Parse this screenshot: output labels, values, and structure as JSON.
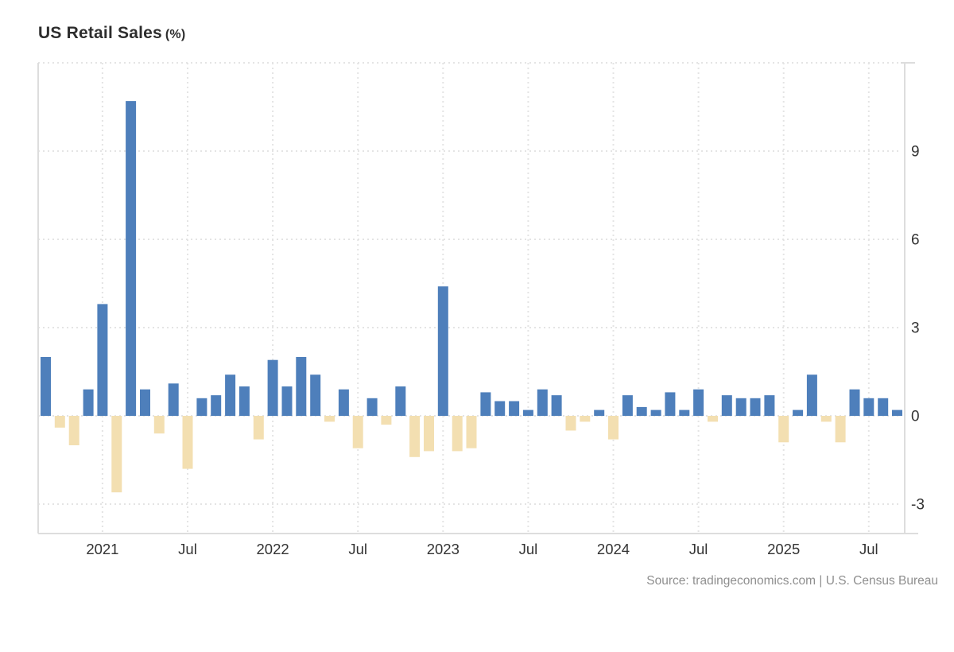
{
  "title": {
    "main": "US Retail Sales",
    "unit": "(%)"
  },
  "source": "Source: tradingeconomics.com | U.S. Census Bureau",
  "chart_data": {
    "type": "bar",
    "series_name": "US Retail Sales MoM (%)",
    "x": [
      "2020-09",
      "2020-10",
      "2020-11",
      "2020-12",
      "2021-01",
      "2021-02",
      "2021-03",
      "2021-04",
      "2021-05",
      "2021-06",
      "2021-07",
      "2021-08",
      "2021-09",
      "2021-10",
      "2021-11",
      "2021-12",
      "2022-01",
      "2022-02",
      "2022-03",
      "2022-04",
      "2022-05",
      "2022-06",
      "2022-07",
      "2022-08",
      "2022-09",
      "2022-10",
      "2022-11",
      "2022-12",
      "2023-01",
      "2023-02",
      "2023-03",
      "2023-04",
      "2023-05",
      "2023-06",
      "2023-07",
      "2023-08",
      "2023-09",
      "2023-10",
      "2023-11",
      "2023-12",
      "2024-01",
      "2024-02",
      "2024-03",
      "2024-04",
      "2024-05",
      "2024-06",
      "2024-07",
      "2024-08",
      "2024-09",
      "2024-10",
      "2024-11",
      "2024-12",
      "2025-01",
      "2025-02",
      "2025-03",
      "2025-04",
      "2025-05",
      "2025-06",
      "2025-07",
      "2025-08",
      "2025-09"
    ],
    "values": [
      2.0,
      -0.4,
      -1.0,
      0.9,
      3.8,
      -2.6,
      10.7,
      0.9,
      -0.6,
      1.1,
      -1.8,
      0.6,
      0.7,
      1.4,
      1.0,
      -0.8,
      1.9,
      1.0,
      2.0,
      1.4,
      -0.2,
      0.9,
      -1.1,
      0.6,
      -0.3,
      1.0,
      -1.4,
      -1.2,
      4.4,
      -1.2,
      -1.1,
      0.8,
      0.5,
      0.5,
      0.2,
      0.9,
      0.7,
      -0.5,
      -0.2,
      0.2,
      -0.8,
      0.7,
      0.3,
      0.2,
      0.8,
      0.2,
      0.9,
      -0.2,
      0.7,
      0.6,
      0.6,
      0.7,
      -0.9,
      0.2,
      1.4,
      -0.2,
      -0.9,
      0.9,
      0.6,
      0.6,
      0.2
    ],
    "xticks": [
      {
        "index": 4,
        "label": "2021"
      },
      {
        "index": 10,
        "label": "Jul"
      },
      {
        "index": 16,
        "label": "2022"
      },
      {
        "index": 22,
        "label": "Jul"
      },
      {
        "index": 28,
        "label": "2023"
      },
      {
        "index": 34,
        "label": "Jul"
      },
      {
        "index": 40,
        "label": "2024"
      },
      {
        "index": 46,
        "label": "Jul"
      },
      {
        "index": 52,
        "label": "2025"
      },
      {
        "index": 58,
        "label": "Jul"
      }
    ],
    "yticks": [
      9,
      6,
      3,
      0,
      -3
    ],
    "ylim": [
      -4,
      12
    ],
    "grid": true,
    "legend": "none",
    "colors": {
      "positive_bar": "#4e7fbb",
      "negative_bar": "#f3dfb1",
      "gridline": "#e4e4e4",
      "border": "#dddddd",
      "axis_text": "#333333",
      "title_text": "#2d2d2d",
      "source_text": "#8f8f8f"
    }
  }
}
